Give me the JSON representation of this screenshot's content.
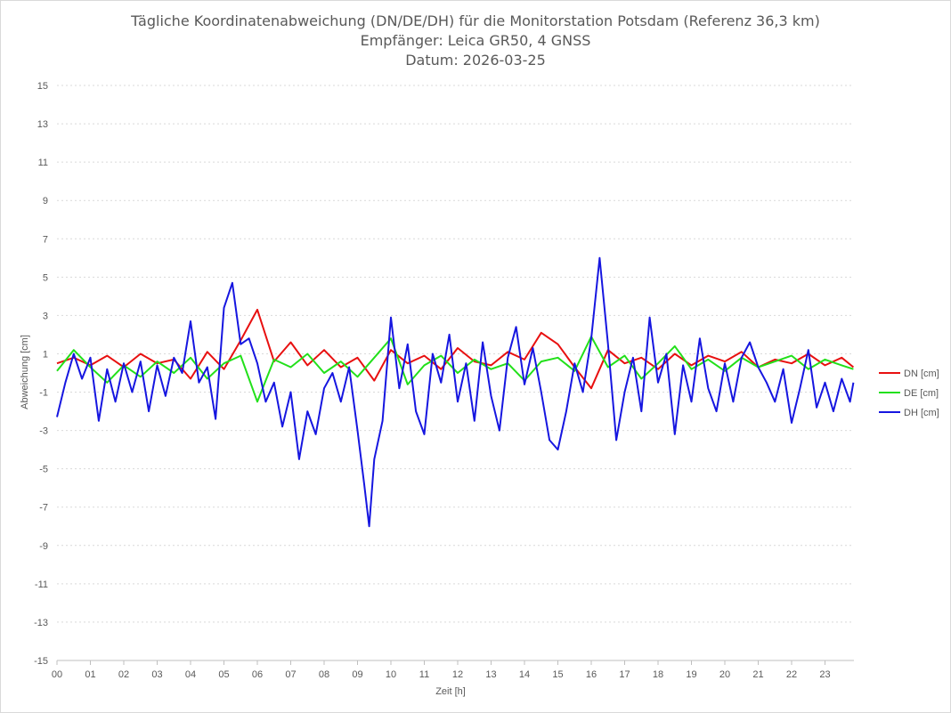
{
  "chart_data": {
    "type": "line",
    "title_lines": [
      "Tägliche Koordinatenabweichung (DN/DE/DH) für die Monitorstation Potsdam (Referenz 36,3 km)",
      "Empfänger: Leica GR50, 4 GNSS",
      "Datum: 2026-03-25"
    ],
    "xlabel": "Zeit [h]",
    "ylabel": "Abweichung [cm]",
    "xlim": [
      0,
      24
    ],
    "ylim": [
      -15,
      15
    ],
    "y_ticks": [
      -15,
      -13,
      -11,
      -9,
      -7,
      -5,
      -3,
      -1,
      1,
      3,
      5,
      7,
      9,
      11,
      13,
      15
    ],
    "x_ticks": [
      "00",
      "01",
      "02",
      "03",
      "04",
      "05",
      "06",
      "07",
      "08",
      "09",
      "10",
      "11",
      "12",
      "13",
      "14",
      "15",
      "16",
      "17",
      "18",
      "19",
      "20",
      "21",
      "22",
      "23"
    ],
    "grid": "horizontal-dotted",
    "legend_position": "right",
    "x_unit": "hour",
    "series": [
      {
        "name": "DN [cm]",
        "color": "#e81010",
        "x": [
          0.0,
          0.5,
          1.0,
          1.5,
          2.0,
          2.5,
          3.0,
          3.5,
          4.0,
          4.5,
          5.0,
          5.5,
          6.0,
          6.5,
          7.0,
          7.5,
          8.0,
          8.5,
          9.0,
          9.5,
          10.0,
          10.5,
          11.0,
          11.5,
          12.0,
          12.5,
          13.0,
          13.5,
          14.0,
          14.5,
          15.0,
          15.5,
          16.0,
          16.5,
          17.0,
          17.5,
          18.0,
          18.5,
          19.0,
          19.5,
          20.0,
          20.5,
          21.0,
          21.5,
          22.0,
          22.5,
          23.0,
          23.5,
          23.85
        ],
        "y": [
          0.5,
          0.8,
          0.4,
          0.9,
          0.3,
          1.0,
          0.5,
          0.7,
          -0.3,
          1.1,
          0.2,
          1.7,
          3.3,
          0.6,
          1.6,
          0.4,
          1.2,
          0.3,
          0.8,
          -0.4,
          1.2,
          0.5,
          0.9,
          0.2,
          1.3,
          0.6,
          0.4,
          1.1,
          0.7,
          2.1,
          1.5,
          0.3,
          -0.8,
          1.2,
          0.5,
          0.8,
          0.2,
          1.0,
          0.4,
          0.9,
          0.6,
          1.1,
          0.3,
          0.7,
          0.5,
          1.0,
          0.4,
          0.8,
          0.3
        ]
      },
      {
        "name": "DE [cm]",
        "color": "#22e01a",
        "x": [
          0.0,
          0.5,
          1.0,
          1.5,
          2.0,
          2.5,
          3.0,
          3.5,
          4.0,
          4.5,
          5.0,
          5.5,
          6.0,
          6.5,
          7.0,
          7.5,
          8.0,
          8.5,
          9.0,
          9.5,
          10.0,
          10.5,
          11.0,
          11.5,
          12.0,
          12.5,
          13.0,
          13.5,
          14.0,
          14.5,
          15.0,
          15.5,
          16.0,
          16.5,
          17.0,
          17.5,
          18.0,
          18.5,
          19.0,
          19.5,
          20.0,
          20.5,
          21.0,
          21.5,
          22.0,
          22.5,
          23.0,
          23.5,
          23.85
        ],
        "y": [
          0.1,
          1.2,
          0.3,
          -0.5,
          0.4,
          -0.2,
          0.6,
          0.0,
          0.8,
          -0.3,
          0.5,
          0.9,
          -1.5,
          0.7,
          0.3,
          1.0,
          0.0,
          0.6,
          -0.2,
          0.8,
          1.8,
          -0.6,
          0.4,
          0.9,
          0.0,
          0.7,
          0.2,
          0.5,
          -0.4,
          0.6,
          0.8,
          0.1,
          1.9,
          0.3,
          0.9,
          -0.3,
          0.5,
          1.4,
          0.2,
          0.7,
          0.1,
          0.8,
          0.3,
          0.6,
          0.9,
          0.2,
          0.7,
          0.4,
          0.2
        ]
      },
      {
        "name": "DH [cm]",
        "color": "#1616e0",
        "x": [
          0.0,
          0.25,
          0.5,
          0.75,
          1.0,
          1.25,
          1.5,
          1.75,
          2.0,
          2.25,
          2.5,
          2.75,
          3.0,
          3.25,
          3.5,
          3.75,
          4.0,
          4.25,
          4.5,
          4.75,
          5.0,
          5.25,
          5.5,
          5.75,
          6.0,
          6.25,
          6.5,
          6.75,
          7.0,
          7.25,
          7.5,
          7.75,
          8.0,
          8.25,
          8.5,
          8.75,
          9.0,
          9.2,
          9.35,
          9.5,
          9.75,
          10.0,
          10.25,
          10.5,
          10.75,
          11.0,
          11.25,
          11.5,
          11.75,
          12.0,
          12.25,
          12.5,
          12.75,
          13.0,
          13.25,
          13.5,
          13.75,
          14.0,
          14.25,
          14.5,
          14.75,
          15.0,
          15.25,
          15.5,
          15.75,
          16.0,
          16.25,
          16.5,
          16.75,
          17.0,
          17.25,
          17.5,
          17.75,
          18.0,
          18.25,
          18.5,
          18.75,
          19.0,
          19.25,
          19.5,
          19.75,
          20.0,
          20.25,
          20.5,
          20.75,
          21.0,
          21.25,
          21.5,
          21.75,
          22.0,
          22.25,
          22.5,
          22.75,
          23.0,
          23.25,
          23.5,
          23.75,
          23.85
        ],
        "y": [
          -2.3,
          -0.5,
          1.0,
          -0.3,
          0.8,
          -2.5,
          0.2,
          -1.5,
          0.5,
          -1.0,
          0.6,
          -2.0,
          0.4,
          -1.2,
          0.8,
          0.0,
          2.7,
          -0.5,
          0.3,
          -2.4,
          3.4,
          4.7,
          1.5,
          1.8,
          0.5,
          -1.5,
          -0.5,
          -2.8,
          -1.0,
          -4.5,
          -2.0,
          -3.2,
          -0.8,
          0.0,
          -1.5,
          0.3,
          -3.0,
          -5.8,
          -8.0,
          -4.5,
          -2.5,
          2.9,
          -0.8,
          1.5,
          -2.0,
          -3.2,
          1.0,
          -0.5,
          2.0,
          -1.5,
          0.5,
          -2.5,
          1.6,
          -1.2,
          -3.0,
          0.8,
          2.4,
          -0.6,
          1.3,
          -1.0,
          -3.5,
          -4.0,
          -2.0,
          0.5,
          -1.0,
          1.8,
          6.0,
          1.5,
          -3.5,
          -1.0,
          0.8,
          -2.0,
          2.9,
          -0.5,
          1.0,
          -3.2,
          0.4,
          -1.5,
          1.8,
          -0.8,
          -2.0,
          0.5,
          -1.5,
          0.8,
          1.6,
          0.3,
          -0.5,
          -1.5,
          0.2,
          -2.6,
          -0.8,
          1.2,
          -1.8,
          -0.5,
          -2.0,
          -0.3,
          -1.5,
          -0.5
        ]
      }
    ]
  }
}
